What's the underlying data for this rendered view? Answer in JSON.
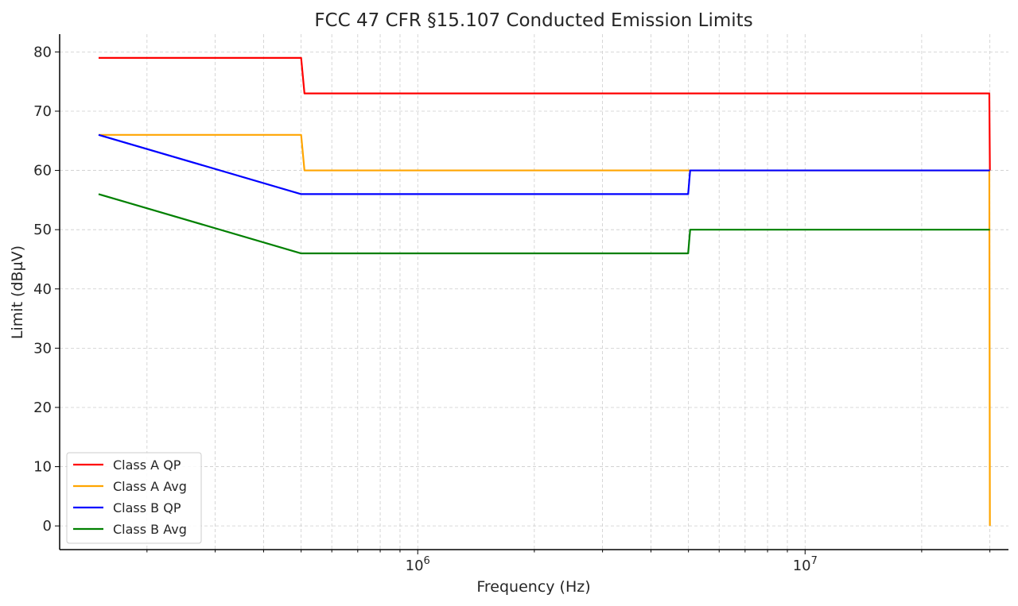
{
  "chart_data": {
    "type": "line",
    "title": "FCC 47 CFR §15.107 Conducted Emission Limits",
    "xlabel": "Frequency (Hz)",
    "ylabel": "Limit (dBµV)",
    "xscale": "log",
    "xlim": [
      119000,
      33500000
    ],
    "ylim": [
      -4,
      83
    ],
    "x_major_ticks": [
      {
        "value": 1000000,
        "base": "10",
        "exp": "6"
      },
      {
        "value": 10000000,
        "base": "10",
        "exp": "7"
      }
    ],
    "y_ticks": [
      0,
      10,
      20,
      30,
      40,
      50,
      60,
      70,
      80
    ],
    "grid": true,
    "legend_position": "lower-left",
    "series": [
      {
        "name": "Class A QP",
        "color": "#ff0000",
        "x": [
          150000,
          500000,
          510000,
          29900000,
          30000000
        ],
        "y": [
          79,
          79,
          73,
          73,
          60
        ]
      },
      {
        "name": "Class A Avg",
        "color": "#ffa500",
        "x": [
          150000,
          500000,
          510000,
          29900000,
          30000000
        ],
        "y": [
          66,
          66,
          60,
          60,
          0
        ]
      },
      {
        "name": "Class B QP",
        "color": "#0000ff",
        "x": [
          150000,
          500000,
          4990000,
          5050000,
          30000000
        ],
        "y": [
          66,
          56,
          56,
          60,
          60
        ]
      },
      {
        "name": "Class B Avg",
        "color": "#008000",
        "x": [
          150000,
          500000,
          4990000,
          5050000,
          30000000
        ],
        "y": [
          56,
          46,
          46,
          50,
          50
        ]
      }
    ]
  }
}
